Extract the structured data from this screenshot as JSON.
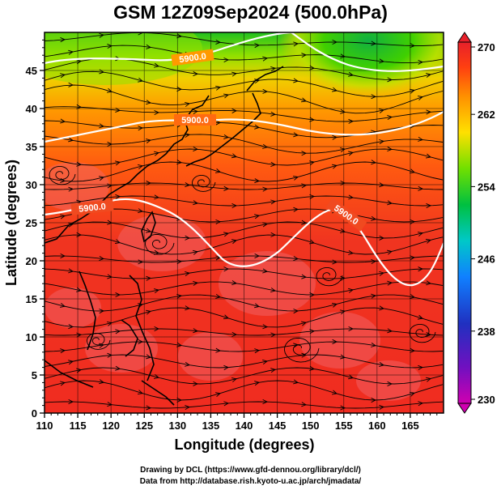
{
  "title": "GSM 12Z09Sep2024 (500.0hPa)",
  "x_axis": {
    "label": "Longitude (degrees)",
    "ticks": [
      "110",
      "115",
      "120",
      "125",
      "130",
      "135",
      "140",
      "145",
      "150",
      "155",
      "160",
      "165"
    ],
    "range": [
      110,
      170
    ]
  },
  "y_axis": {
    "label": "Latitude  (degrees)",
    "ticks": [
      "0",
      "5",
      "10",
      "15",
      "20",
      "25",
      "30",
      "35",
      "40",
      "45"
    ],
    "range": [
      0,
      50
    ]
  },
  "colorbar": {
    "ticks": [
      "270",
      "262",
      "254",
      "246",
      "238",
      "230"
    ],
    "range": [
      230,
      270
    ],
    "colors": [
      "#d000b0",
      "#3020c0",
      "#1070ff",
      "#00c8c8",
      "#00c040",
      "#80e000",
      "#ffe000",
      "#ff9000",
      "#ff3000",
      "#e8202a"
    ]
  },
  "contours": [
    {
      "label": "5900.0"
    },
    {
      "label": "5900.0"
    },
    {
      "label": "5900.0"
    },
    {
      "label": "5900.0"
    }
  ],
  "credits": [
    "Drawing by DCL (https://www.gfd-dennou.org/library/dcl/)",
    "Data from http://database.rish.kyoto-u.ac.jp/arch/jmadata/"
  ]
}
